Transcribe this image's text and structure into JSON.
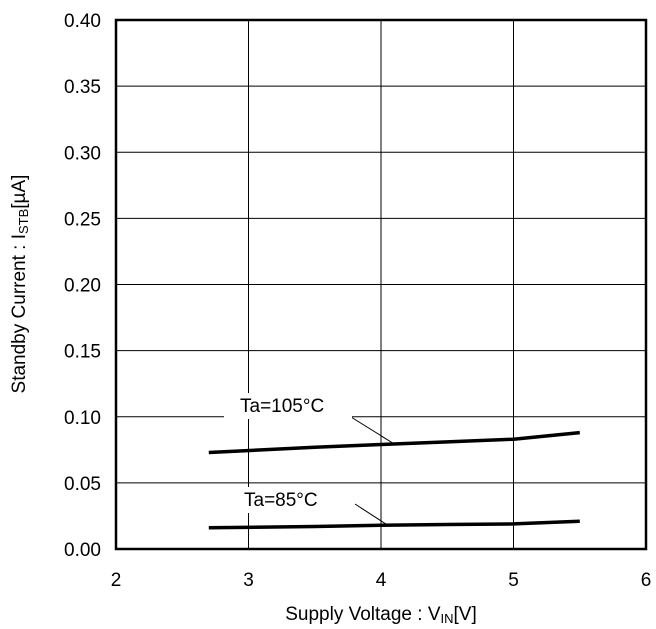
{
  "chart_data": {
    "type": "line",
    "xlabel": {
      "main": "Supply Voltage : V",
      "sub": "IN",
      "unit": "[V]"
    },
    "ylabel": {
      "main": "Standby Current : I",
      "sub": "STB",
      "unit": "[µA]"
    },
    "xlim": [
      2,
      6
    ],
    "ylim": [
      0,
      0.4
    ],
    "x_ticks": [
      "2",
      "3",
      "4",
      "5",
      "6"
    ],
    "y_ticks": [
      "0.00",
      "0.05",
      "0.10",
      "0.15",
      "0.20",
      "0.25",
      "0.30",
      "0.35",
      "0.40"
    ],
    "grid": true,
    "series": [
      {
        "name": "Ta=105°C",
        "x": [
          2.7,
          3.5,
          4.0,
          4.5,
          5.0,
          5.5
        ],
        "y": [
          0.073,
          0.077,
          0.079,
          0.081,
          0.083,
          0.088
        ]
      },
      {
        "name": "Ta=85°C",
        "x": [
          2.7,
          3.5,
          4.0,
          4.5,
          5.0,
          5.5
        ],
        "y": [
          0.016,
          0.017,
          0.018,
          0.0185,
          0.019,
          0.021
        ]
      }
    ],
    "annotations": [
      {
        "text": "Ta=105°C",
        "series": 0
      },
      {
        "text": "Ta=85°C",
        "series": 1
      }
    ]
  }
}
